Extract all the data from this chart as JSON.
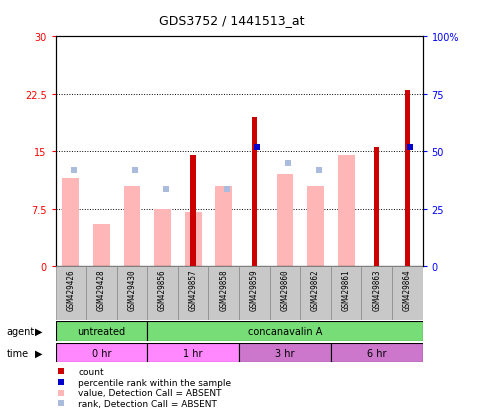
{
  "title": "GDS3752 / 1441513_at",
  "samples": [
    "GSM429426",
    "GSM429428",
    "GSM429430",
    "GSM429856",
    "GSM429857",
    "GSM429858",
    "GSM429859",
    "GSM429860",
    "GSM429862",
    "GSM429861",
    "GSM429863",
    "GSM429864"
  ],
  "count_values": [
    0,
    0,
    0,
    0,
    14.5,
    0,
    19.5,
    0,
    0,
    0,
    15.5,
    23.0
  ],
  "value_absent": [
    11.5,
    5.5,
    10.5,
    7.5,
    7.0,
    10.5,
    0,
    12.0,
    10.5,
    14.5,
    0,
    0
  ],
  "rank_absent": [
    12.5,
    0,
    12.5,
    10.0,
    0,
    10.0,
    0,
    13.5,
    12.5,
    0,
    0,
    0
  ],
  "percentile_rank": [
    0,
    0,
    0,
    0,
    0,
    0,
    15.5,
    0,
    0,
    0,
    0,
    15.5
  ],
  "ylim_left": [
    0,
    30
  ],
  "ylim_right": [
    0,
    100
  ],
  "yticks_left": [
    0,
    7.5,
    15,
    22.5,
    30
  ],
  "yticks_right": [
    0,
    25,
    50,
    75,
    100
  ],
  "ytick_labels_left": [
    "0",
    "7.5",
    "15",
    "22.5",
    "30"
  ],
  "ytick_labels_right": [
    "0",
    "25",
    "50",
    "75",
    "100%"
  ],
  "agent_groups": [
    {
      "label": "untreated",
      "start": 0,
      "end": 3,
      "color": "#77DD77"
    },
    {
      "label": "concanavalin A",
      "start": 3,
      "end": 12,
      "color": "#77DD77"
    }
  ],
  "time_groups": [
    {
      "label": "0 hr",
      "start": 0,
      "end": 3,
      "color": "#FF88FF"
    },
    {
      "label": "1 hr",
      "start": 3,
      "end": 6,
      "color": "#FF88FF"
    },
    {
      "label": "3 hr",
      "start": 6,
      "end": 9,
      "color": "#CC77CC"
    },
    {
      "label": "6 hr",
      "start": 9,
      "end": 12,
      "color": "#CC77CC"
    }
  ],
  "color_count": "#CC0000",
  "color_value_absent": "#FFB6B6",
  "color_rank_absent": "#AABBDD",
  "color_percentile": "#0000CC",
  "grid_color": "black",
  "sample_bg": "#C8C8C8",
  "plot_bg": "#FFFFFF"
}
